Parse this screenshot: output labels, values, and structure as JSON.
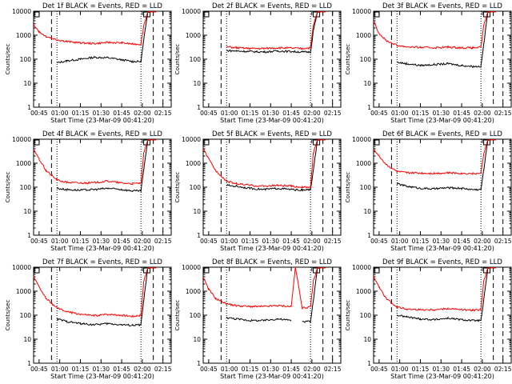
{
  "common": {
    "x_ticks": [
      "00:45",
      "01:00",
      "01:15",
      "01:30",
      "01:45",
      "02:00",
      "02:15"
    ],
    "y_ticks": [
      "1",
      "10",
      "100",
      "1000",
      "10000"
    ],
    "ylabel": "Counts/sec",
    "xlabel": "Start Time (23-Mar-09 00:41:20)",
    "colors": {
      "events": "#000000",
      "lld": "#ff0000"
    }
  },
  "chart_data": [
    {
      "type": "line",
      "title": "Det 1f BLACK = Events, RED = LLD",
      "x": [
        "00:41",
        "00:45",
        "00:50",
        "00:58",
        "01:05",
        "01:15",
        "01:25",
        "01:35",
        "01:45",
        "01:53",
        "01:59",
        "02:01",
        "02:04",
        "02:07",
        "02:10"
      ],
      "series": [
        {
          "color": "#000000",
          "values": [
            null,
            null,
            null,
            70,
            85,
            100,
            120,
            115,
            95,
            80,
            80,
            600,
            9000,
            9500,
            9500
          ]
        },
        {
          "color": "#ff0000",
          "values": [
            3000,
            1400,
            900,
            650,
            550,
            480,
            450,
            500,
            480,
            430,
            420,
            2500,
            9500,
            9500,
            9500
          ]
        }
      ],
      "ylim": [
        1,
        10000
      ],
      "y_scale": "log"
    },
    {
      "type": "line",
      "title": "Det 2f BLACK = Events, RED = LLD",
      "x": [
        "00:41",
        "00:45",
        "00:50",
        "00:58",
        "01:05",
        "01:15",
        "01:25",
        "01:35",
        "01:45",
        "01:53",
        "01:59",
        "02:01",
        "02:04",
        "02:07",
        "02:10"
      ],
      "series": [
        {
          "color": "#000000",
          "values": [
            null,
            null,
            null,
            230,
            220,
            210,
            200,
            220,
            210,
            200,
            200,
            1500,
            9000,
            9500,
            9500
          ]
        },
        {
          "color": "#ff0000",
          "values": [
            null,
            null,
            null,
            330,
            300,
            280,
            280,
            300,
            290,
            280,
            300,
            2500,
            9500,
            9500,
            9500
          ]
        }
      ],
      "ylim": [
        1,
        10000
      ],
      "y_scale": "log"
    },
    {
      "type": "line",
      "title": "Det 3f BLACK = Events, RED = LLD",
      "x": [
        "00:41",
        "00:45",
        "00:50",
        "00:58",
        "01:05",
        "01:15",
        "01:25",
        "01:35",
        "01:45",
        "01:53",
        "01:59",
        "02:01",
        "02:04",
        "02:07",
        "02:10"
      ],
      "series": [
        {
          "color": "#000000",
          "values": [
            null,
            null,
            null,
            75,
            65,
            55,
            60,
            65,
            55,
            50,
            50,
            400,
            9000,
            9500,
            9500
          ]
        },
        {
          "color": "#ff0000",
          "values": [
            4000,
            1200,
            600,
            380,
            330,
            310,
            300,
            320,
            300,
            300,
            310,
            2500,
            9500,
            9500,
            9500
          ]
        }
      ],
      "ylim": [
        1,
        10000
      ],
      "y_scale": "log"
    },
    {
      "type": "line",
      "title": "Det 4f BLACK = Events, RED = LLD",
      "x": [
        "00:41",
        "00:45",
        "00:50",
        "00:58",
        "01:05",
        "01:15",
        "01:25",
        "01:35",
        "01:45",
        "01:53",
        "01:59",
        "02:01",
        "02:04",
        "02:07",
        "02:10"
      ],
      "series": [
        {
          "color": "#000000",
          "values": [
            null,
            null,
            null,
            90,
            80,
            75,
            80,
            90,
            80,
            70,
            70,
            500,
            9000,
            9500,
            9500
          ]
        },
        {
          "color": "#ff0000",
          "values": [
            4000,
            1500,
            500,
            200,
            160,
            150,
            155,
            180,
            150,
            140,
            150,
            2500,
            9500,
            9500,
            9500
          ]
        }
      ],
      "ylim": [
        1,
        10000
      ],
      "y_scale": "log"
    },
    {
      "type": "line",
      "title": "Det 5f BLACK = Events, RED = LLD",
      "x": [
        "00:41",
        "00:45",
        "00:50",
        "00:58",
        "01:05",
        "01:15",
        "01:25",
        "01:35",
        "01:45",
        "01:53",
        "01:59",
        "02:01",
        "02:04",
        "02:07",
        "02:10"
      ],
      "series": [
        {
          "color": "#000000",
          "values": [
            null,
            null,
            null,
            120,
            110,
            90,
            80,
            90,
            80,
            75,
            80,
            500,
            9000,
            9500,
            9500
          ]
        },
        {
          "color": "#ff0000",
          "values": [
            4000,
            1500,
            500,
            180,
            140,
            120,
            110,
            120,
            110,
            100,
            100,
            2500,
            9500,
            9500,
            9500
          ]
        }
      ],
      "ylim": [
        1,
        10000
      ],
      "y_scale": "log"
    },
    {
      "type": "line",
      "title": "Det 6f BLACK = Events, RED = LLD",
      "x": [
        "00:41",
        "00:45",
        "00:50",
        "00:58",
        "01:05",
        "01:15",
        "01:25",
        "01:35",
        "01:45",
        "01:53",
        "01:59",
        "02:01",
        "02:04",
        "02:07",
        "02:10"
      ],
      "series": [
        {
          "color": "#000000",
          "values": [
            null,
            null,
            null,
            140,
            110,
            90,
            85,
            95,
            90,
            80,
            80,
            500,
            9000,
            9500,
            9500
          ]
        },
        {
          "color": "#ff0000",
          "values": [
            4000,
            2000,
            900,
            450,
            400,
            390,
            380,
            400,
            380,
            370,
            380,
            2500,
            9500,
            9500,
            9500
          ]
        }
      ],
      "ylim": [
        1,
        10000
      ],
      "y_scale": "log"
    },
    {
      "type": "line",
      "title": "Det 7f BLACK = Events, RED = LLD",
      "x": [
        "00:41",
        "00:45",
        "00:50",
        "00:58",
        "01:05",
        "01:15",
        "01:25",
        "01:35",
        "01:45",
        "01:53",
        "01:59",
        "02:01",
        "02:04",
        "02:07",
        "02:10"
      ],
      "series": [
        {
          "color": "#000000",
          "values": [
            null,
            null,
            null,
            70,
            55,
            45,
            40,
            45,
            40,
            38,
            40,
            400,
            9000,
            9500,
            9500
          ]
        },
        {
          "color": "#ff0000",
          "values": [
            4000,
            1500,
            500,
            200,
            140,
            110,
            95,
            110,
            100,
            90,
            100,
            2500,
            9500,
            9500,
            9500
          ]
        }
      ],
      "ylim": [
        1,
        10000
      ],
      "y_scale": "log"
    },
    {
      "type": "line",
      "title": "Det 8f BLACK = Events, RED = LLD",
      "x": [
        "00:41",
        "00:45",
        "00:50",
        "00:58",
        "01:05",
        "01:15",
        "01:25",
        "01:35",
        "01:45",
        "01:48",
        "01:53",
        "01:59",
        "02:01",
        "02:04",
        "02:07",
        "02:10"
      ],
      "series": [
        {
          "color": "#000000",
          "values": [
            null,
            null,
            null,
            80,
            70,
            60,
            60,
            70,
            60,
            null,
            55,
            55,
            400,
            9000,
            9500,
            9500
          ]
        },
        {
          "color": "#ff0000",
          "values": [
            4000,
            1200,
            500,
            300,
            250,
            230,
            230,
            250,
            230,
            10000,
            200,
            220,
            2500,
            9500,
            9500,
            9500
          ]
        }
      ],
      "ylim": [
        1,
        10000
      ],
      "y_scale": "log"
    },
    {
      "type": "line",
      "title": "Det 9f BLACK = Events, RED = LLD",
      "x": [
        "00:41",
        "00:45",
        "00:50",
        "00:58",
        "01:05",
        "01:15",
        "01:25",
        "01:35",
        "01:45",
        "01:53",
        "01:59",
        "02:01",
        "02:04",
        "02:07",
        "02:10"
      ],
      "series": [
        {
          "color": "#000000",
          "values": [
            null,
            null,
            null,
            100,
            85,
            70,
            65,
            75,
            65,
            60,
            60,
            400,
            9000,
            9500,
            9500
          ]
        },
        {
          "color": "#ff0000",
          "values": [
            4000,
            1500,
            500,
            220,
            180,
            170,
            170,
            190,
            170,
            160,
            170,
            2500,
            9500,
            9500,
            9500
          ]
        }
      ],
      "ylim": [
        1,
        10000
      ],
      "y_scale": "log"
    }
  ]
}
